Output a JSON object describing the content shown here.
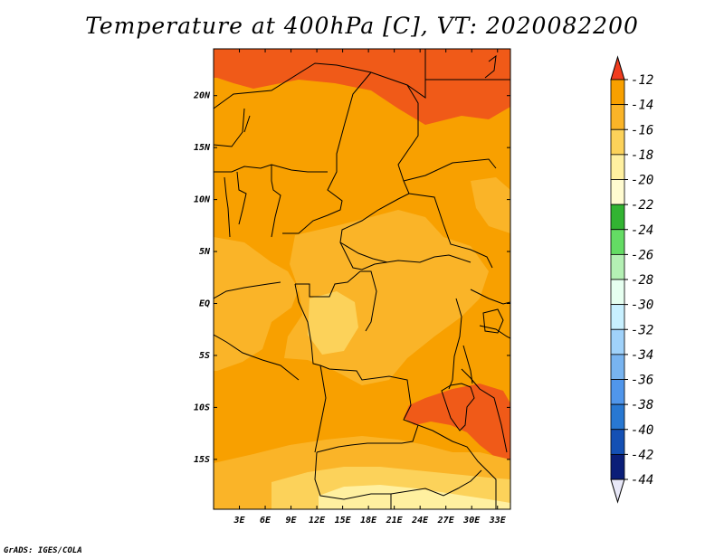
{
  "title": "Temperature at 400hPa [C], VT: 2020082200",
  "credit": "GrADS: IGES/COLA",
  "axes": {
    "lon_labels": [
      "3E",
      "6E",
      "9E",
      "12E",
      "15E",
      "18E",
      "21E",
      "24E",
      "27E",
      "30E",
      "33E"
    ],
    "lon_values": [
      3,
      6,
      9,
      12,
      15,
      18,
      21,
      24,
      27,
      30,
      33
    ],
    "lat_labels": [
      "20N",
      "15N",
      "10N",
      "5N",
      "EQ",
      "5S",
      "10S",
      "15S"
    ],
    "lat_values": [
      20,
      15,
      10,
      5,
      0,
      -5,
      -10,
      -15
    ],
    "lon_range": [
      0,
      34.5
    ],
    "lat_range": [
      -19.8,
      24.5
    ]
  },
  "colorbar": {
    "labels": [
      "-12",
      "-14",
      "-16",
      "-18",
      "-20",
      "-22",
      "-24",
      "-26",
      "-28",
      "-30",
      "-32",
      "-34",
      "-36",
      "-38",
      "-40",
      "-42",
      "-44"
    ],
    "colors": [
      "#f05a18",
      "#f8a000",
      "#fab428",
      "#fcd25a",
      "#fff0a0",
      "#fffbd0",
      "#32b432",
      "#64dc64",
      "#b4f0b4",
      "#e6fff0",
      "#c8f0ff",
      "#a0d2fa",
      "#78b4f0",
      "#5096eb",
      "#2878d2",
      "#1450b4",
      "#0a1e78"
    ],
    "top_color": "#f03c1e",
    "bottom_color": "#e8e8f8"
  }
}
